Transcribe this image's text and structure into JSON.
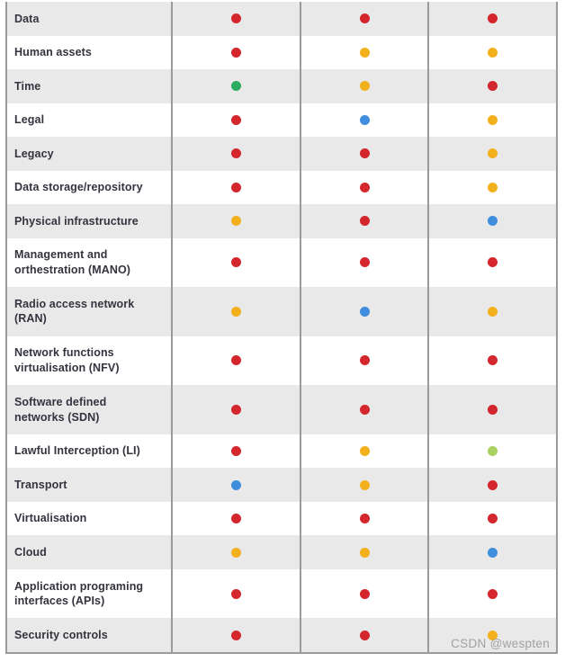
{
  "colors": {
    "red": "#d4262d",
    "amber": "#f2b01d",
    "green": "#2aab5f",
    "blue": "#3f8edd",
    "light_green": "#a9d163",
    "row_alt_bg": "#e9e9e9",
    "grid_border": "#9a9a9a",
    "label_text": "#34333e"
  },
  "table": {
    "dot_columns": 3,
    "rows": [
      {
        "label": "Data",
        "dots": [
          "red",
          "red",
          "red"
        ]
      },
      {
        "label": "Human assets",
        "dots": [
          "red",
          "amber",
          "amber"
        ]
      },
      {
        "label": "Time",
        "dots": [
          "green",
          "amber",
          "red"
        ]
      },
      {
        "label": "Legal",
        "dots": [
          "red",
          "blue",
          "amber"
        ]
      },
      {
        "label": "Legacy",
        "dots": [
          "red",
          "red",
          "amber"
        ]
      },
      {
        "label": "Data storage/repository",
        "dots": [
          "red",
          "red",
          "amber"
        ]
      },
      {
        "label": "Physical infrastructure",
        "dots": [
          "amber",
          "red",
          "blue"
        ]
      },
      {
        "label": "Management and\northestration (MANO)",
        "dots": [
          "red",
          "red",
          "red"
        ]
      },
      {
        "label": "Radio access network\n(RAN)",
        "dots": [
          "amber",
          "blue",
          "amber"
        ]
      },
      {
        "label": "Network functions\nvirtualisation (NFV)",
        "dots": [
          "red",
          "red",
          "red"
        ]
      },
      {
        "label": "Software defined\nnetworks (SDN)",
        "dots": [
          "red",
          "red",
          "red"
        ]
      },
      {
        "label": "Lawful Interception (LI)",
        "dots": [
          "red",
          "amber",
          "light_green"
        ]
      },
      {
        "label": "Transport",
        "dots": [
          "blue",
          "amber",
          "red"
        ]
      },
      {
        "label": "Virtualisation",
        "dots": [
          "red",
          "red",
          "red"
        ]
      },
      {
        "label": "Cloud",
        "dots": [
          "amber",
          "amber",
          "blue"
        ]
      },
      {
        "label": "Application programing\ninterfaces (APIs)",
        "dots": [
          "red",
          "red",
          "red"
        ]
      },
      {
        "label": "Security controls",
        "dots": [
          "red",
          "red",
          "amber"
        ]
      }
    ]
  },
  "watermark": "CSDN @wespten"
}
